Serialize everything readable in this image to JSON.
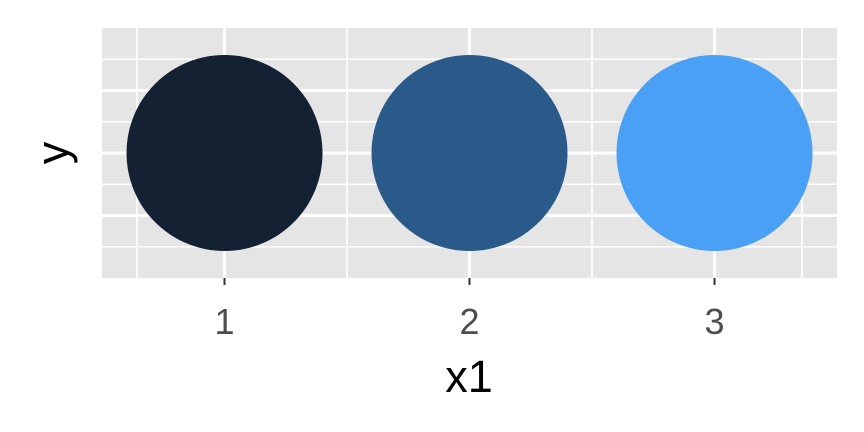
{
  "chart_data": {
    "type": "scatter",
    "title": "",
    "xlabel": "x1",
    "ylabel": "y",
    "x": [
      1,
      2,
      3
    ],
    "x_ticks": [
      "1",
      "2",
      "3"
    ],
    "xlim": [
      0.5,
      3.5
    ],
    "y": [
      0,
      0,
      0
    ],
    "y_ticks": [],
    "grid": true,
    "legend": "none",
    "point_colors": [
      "#132132",
      "#2a5a8a",
      "#4aa0f5"
    ],
    "panel_background": "#e5e5e5",
    "grid_color": "#ffffff"
  }
}
